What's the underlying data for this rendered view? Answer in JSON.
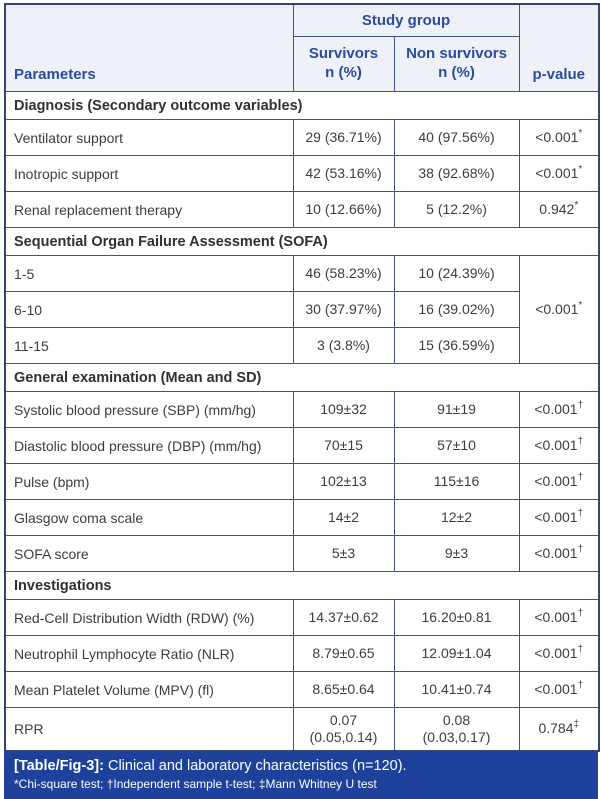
{
  "colors": {
    "border": "#3a5284",
    "outer_border": "#2f4770",
    "header_bg": "#eef1f8",
    "header_text": "#2b4b9e",
    "body_text": "#3d3d3d",
    "caption_bg": "#1e429c",
    "caption_text": "#ffffff"
  },
  "table": {
    "header": {
      "parameters": "Parameters",
      "study_group": "Study group",
      "survivors": "Survivors\nn (%)",
      "non_survivors": "Non survivors\nn (%)",
      "p_value": "p-value"
    },
    "sections": [
      {
        "title": "Diagnosis (Secondary outcome variables)",
        "rows": [
          {
            "parameter": "Ventilator support",
            "survivors": "29 (36.71%)",
            "non_survivors": "40 (97.56%)",
            "p": "<0.001",
            "p_mark": "*"
          },
          {
            "parameter": "Inotropic support",
            "survivors": "42 (53.16%)",
            "non_survivors": "38 (92.68%)",
            "p": "<0.001",
            "p_mark": "*"
          },
          {
            "parameter": "Renal replacement therapy",
            "survivors": "10 (12.66%)",
            "non_survivors": "5 (12.2%)",
            "p": "0.942",
            "p_mark": "*"
          }
        ]
      },
      {
        "title": "Sequential Organ Failure Assessment (SOFA)",
        "merged_p": "<0.001",
        "merged_p_mark": "*",
        "rows": [
          {
            "parameter": "1-5",
            "survivors": "46 (58.23%)",
            "non_survivors": "10 (24.39%)"
          },
          {
            "parameter": "6-10",
            "survivors": "30 (37.97%)",
            "non_survivors": "16 (39.02%)"
          },
          {
            "parameter": "11-15",
            "survivors": "3 (3.8%)",
            "non_survivors": "15 (36.59%)"
          }
        ]
      },
      {
        "title": "General examination (Mean and SD)",
        "rows": [
          {
            "parameter": "Systolic blood pressure (SBP) (mm/hg)",
            "survivors": "109±32",
            "non_survivors": "91±19",
            "p": "<0.001",
            "p_mark": "†"
          },
          {
            "parameter": "Diastolic blood pressure (DBP) (mm/hg)",
            "survivors": "70±15",
            "non_survivors": "57±10",
            "p": "<0.001",
            "p_mark": "†"
          },
          {
            "parameter": "Pulse (bpm)",
            "survivors": "102±13",
            "non_survivors": "115±16",
            "p": "<0.001",
            "p_mark": "†"
          },
          {
            "parameter": "Glasgow coma scale",
            "survivors": "14±2",
            "non_survivors": "12±2",
            "p": "<0.001",
            "p_mark": "†"
          },
          {
            "parameter": "SOFA score",
            "survivors": "5±3",
            "non_survivors": "9±3",
            "p": "<0.001",
            "p_mark": "†"
          }
        ]
      },
      {
        "title": "Investigations",
        "rows": [
          {
            "parameter": "Red-Cell Distribution Width (RDW) (%)",
            "survivors": "14.37±0.62",
            "non_survivors": "16.20±0.81",
            "p": "<0.001",
            "p_mark": "†"
          },
          {
            "parameter": "Neutrophil Lymphocyte Ratio (NLR)",
            "survivors": "8.79±0.65",
            "non_survivors": "12.09±1.04",
            "p": "<0.001",
            "p_mark": "†"
          },
          {
            "parameter": "Mean Platelet Volume (MPV) (fl)",
            "survivors": "8.65±0.64",
            "non_survivors": "10.41±0.74",
            "p": "<0.001",
            "p_mark": "†"
          },
          {
            "parameter": "RPR",
            "survivors": "0.07\n(0.05,0.14)",
            "non_survivors": "0.08\n(0.03,0.17)",
            "p": "0.784",
            "p_mark": "‡"
          }
        ]
      }
    ]
  },
  "footer": {
    "label": "[Table/Fig-3]:",
    "caption": "Clinical and laboratory characteristics (n=120).",
    "footnote": "*Chi-square test; †Independent sample t-test; ‡Mann Whitney U test"
  }
}
